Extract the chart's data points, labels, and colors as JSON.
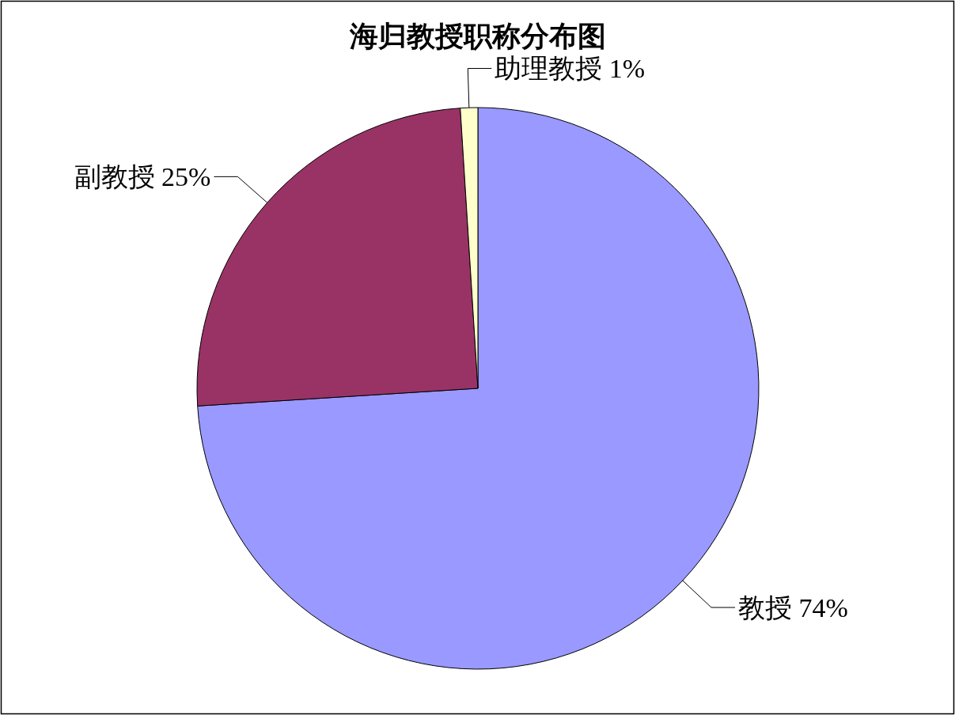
{
  "chart_data": {
    "type": "pie",
    "title": "海归教授职称分布图",
    "categories": [
      "教授",
      "副教授",
      "助理教授"
    ],
    "values": [
      74,
      25,
      1
    ],
    "value_labels": [
      "74%",
      "25%",
      "1%"
    ],
    "colors": [
      "#9999ff",
      "#993366",
      "#ffffcc"
    ]
  }
}
